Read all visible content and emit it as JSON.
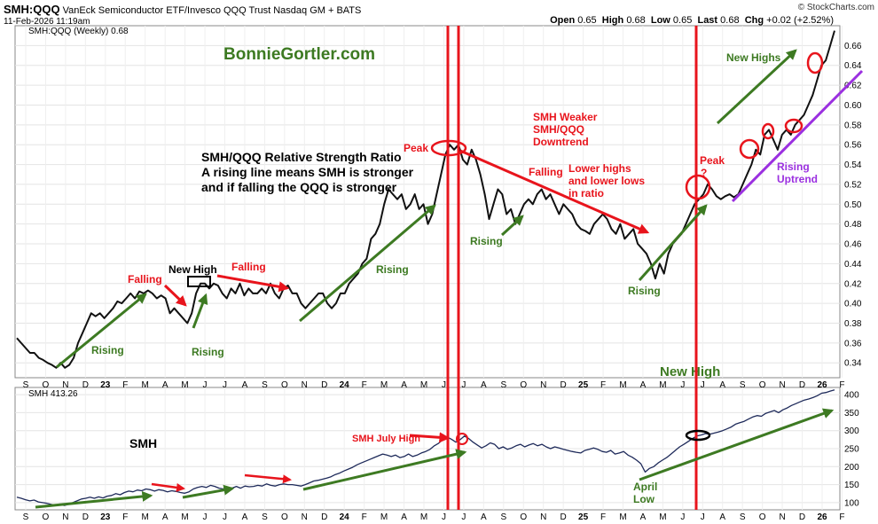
{
  "header": {
    "symbol": "SMH:QQQ",
    "description": "VanEck Semiconductor ETF/Invesco QQQ Trust Nasdaq GM + BATS",
    "date": "11-Feb-2026 11:19am",
    "open_label": "Open",
    "open": "0.65",
    "high_label": "High",
    "high": "0.68",
    "low_label": "Low",
    "low": "0.65",
    "last_label": "Last",
    "last": "0.68",
    "chg_label": "Chg",
    "chg": "+0.02 (+2.52%)",
    "credit": "© StockCharts.com"
  },
  "colors": {
    "red": "#e8141c",
    "green": "#3d7a22",
    "purple": "#9b30e0",
    "line": "#111111",
    "smh_line": "#1e2a5a"
  },
  "months": [
    "S",
    "O",
    "N",
    "D",
    "23",
    "F",
    "M",
    "A",
    "M",
    "J",
    "J",
    "A",
    "S",
    "O",
    "N",
    "D",
    "24",
    "F",
    "M",
    "A",
    "M",
    "J",
    "J",
    "A",
    "S",
    "O",
    "N",
    "D",
    "25",
    "F",
    "M",
    "A",
    "M",
    "J",
    "J",
    "A",
    "S",
    "O",
    "N",
    "D",
    "26",
    "F"
  ],
  "chart_data": [
    {
      "type": "line",
      "name": "ratio-panel",
      "legend": "SMH:QQQ (Weekly) 0.68",
      "legend_placement": "top-left",
      "x_start": "2022-09",
      "x_end": "2026-02",
      "ylim": [
        0.325,
        0.68
      ],
      "y_ticks": [
        "0.34",
        "0.36",
        "0.38",
        "0.40",
        "0.42",
        "0.44",
        "0.46",
        "0.48",
        "0.50",
        "0.52",
        "0.54",
        "0.56",
        "0.58",
        "0.60",
        "0.62",
        "0.64",
        "0.66"
      ],
      "grid": true,
      "series": [
        {
          "values": [
            0.365,
            0.36,
            0.355,
            0.35,
            0.35,
            0.345,
            0.343,
            0.34,
            0.338,
            0.335,
            0.34,
            0.335,
            0.338,
            0.345,
            0.36,
            0.37,
            0.38,
            0.39,
            0.387,
            0.39,
            0.385,
            0.39,
            0.395,
            0.402,
            0.4,
            0.405,
            0.41,
            0.405,
            0.412,
            0.41,
            0.413,
            0.41,
            0.405,
            0.408,
            0.405,
            0.39,
            0.395,
            0.39,
            0.385,
            0.38,
            0.39,
            0.41,
            0.42,
            0.42,
            0.415,
            0.42,
            0.418,
            0.41,
            0.405,
            0.415,
            0.41,
            0.42,
            0.408,
            0.415,
            0.41,
            0.41,
            0.415,
            0.41,
            0.42,
            0.41,
            0.405,
            0.415,
            0.418,
            0.41,
            0.41,
            0.4,
            0.395,
            0.4,
            0.405,
            0.41,
            0.41,
            0.4,
            0.395,
            0.4,
            0.41,
            0.41,
            0.42,
            0.425,
            0.43,
            0.44,
            0.445,
            0.465,
            0.47,
            0.48,
            0.5,
            0.515,
            0.51,
            0.505,
            0.51,
            0.495,
            0.5,
            0.51,
            0.495,
            0.5,
            0.48,
            0.49,
            0.51,
            0.53,
            0.55,
            0.56,
            0.555,
            0.56,
            0.545,
            0.54,
            0.555,
            0.545,
            0.53,
            0.51,
            0.485,
            0.5,
            0.515,
            0.51,
            0.49,
            0.495,
            0.48,
            0.49,
            0.5,
            0.505,
            0.5,
            0.51,
            0.515,
            0.505,
            0.51,
            0.5,
            0.49,
            0.5,
            0.495,
            0.49,
            0.48,
            0.475,
            0.473,
            0.47,
            0.48,
            0.485,
            0.49,
            0.485,
            0.475,
            0.47,
            0.48,
            0.465,
            0.47,
            0.475,
            0.46,
            0.455,
            0.45,
            0.44,
            0.425,
            0.44,
            0.43,
            0.45,
            0.46,
            0.465,
            0.47,
            0.48,
            0.49,
            0.5,
            0.505,
            0.51,
            0.52,
            0.515,
            0.508,
            0.505,
            0.508,
            0.51,
            0.507,
            0.51,
            0.52,
            0.53,
            0.54,
            0.555,
            0.55,
            0.57,
            0.575,
            0.565,
            0.555,
            0.57,
            0.575,
            0.57,
            0.58,
            0.585,
            0.59,
            0.6,
            0.61,
            0.625,
            0.64,
            0.645,
            0.66,
            0.675
          ]
        }
      ],
      "annotations": {
        "watermark": "BonnieGortler.com",
        "desc1": "SMH/QQQ Relative Strength Ratio",
        "desc2": "A rising line means SMH is stronger",
        "desc3": "and if falling the QQQ is stronger",
        "rising": "Rising",
        "falling": "Falling",
        "new_high": "New High",
        "peak": "Peak",
        "peak_q1": "Peak",
        "peak_q2": "?",
        "weaker1": "SMH Weaker",
        "weaker2": "SMH/QQQ",
        "weaker3": "Downtrend",
        "lower1": "Lower highs",
        "lower2": "and lower lows",
        "lower3": "in ratio",
        "new_highs": "New Highs",
        "uptrend1": "Rising",
        "uptrend2": "Uptrend",
        "new_high_bottom": "New High"
      }
    },
    {
      "type": "line",
      "name": "smh-panel",
      "legend": "SMH 413.26",
      "legend_placement": "top-left",
      "ylim": [
        80,
        420
      ],
      "y_ticks": [
        "100",
        "150",
        "200",
        "250",
        "300",
        "350",
        "400"
      ],
      "grid": true,
      "series": [
        {
          "values": [
            115,
            112,
            108,
            105,
            107,
            102,
            100,
            98,
            95,
            93,
            96,
            92,
            95,
            100,
            105,
            110,
            112,
            115,
            112,
            116,
            113,
            118,
            120,
            125,
            122,
            128,
            132,
            130,
            135,
            133,
            138,
            136,
            132,
            136,
            134,
            130,
            133,
            131,
            128,
            126,
            130,
            138,
            142,
            145,
            142,
            148,
            145,
            140,
            138,
            143,
            140,
            145,
            140,
            146,
            144,
            145,
            148,
            146,
            152,
            148,
            146,
            150,
            152,
            150,
            150,
            148,
            146,
            150,
            155,
            160,
            162,
            165,
            168,
            172,
            178,
            182,
            188,
            193,
            198,
            205,
            210,
            215,
            220,
            225,
            230,
            235,
            232,
            228,
            232,
            225,
            228,
            235,
            228,
            232,
            238,
            242,
            248,
            258,
            265,
            275,
            282,
            276,
            268,
            275,
            285,
            278,
            268,
            260,
            252,
            258,
            266,
            262,
            250,
            255,
            248,
            252,
            258,
            262,
            255,
            260,
            264,
            258,
            262,
            255,
            250,
            255,
            252,
            248,
            245,
            242,
            240,
            238,
            245,
            248,
            252,
            248,
            242,
            240,
            245,
            235,
            238,
            242,
            232,
            226,
            218,
            208,
            185,
            195,
            200,
            210,
            218,
            225,
            235,
            245,
            255,
            262,
            270,
            278,
            285,
            288,
            292,
            290,
            293,
            296,
            300,
            305,
            310,
            318,
            322,
            326,
            332,
            338,
            342,
            340,
            348,
            352,
            356,
            350,
            358,
            363,
            370,
            375,
            380,
            385,
            388,
            392,
            397,
            404,
            406,
            410,
            413
          ]
        }
      ],
      "annotations": {
        "title": "SMH",
        "july_high": "SMH July High",
        "april1": "April",
        "april2": "Low"
      }
    }
  ]
}
